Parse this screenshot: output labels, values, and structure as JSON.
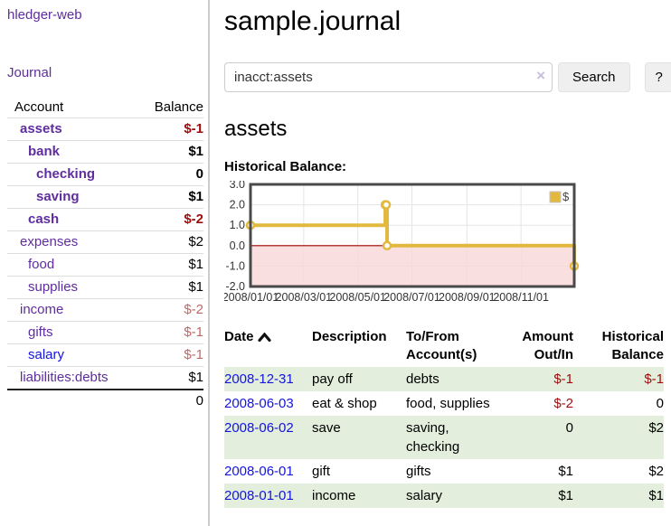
{
  "sidebar": {
    "app_title": "hledger-web",
    "nav_journal": "Journal",
    "accounts_table": {
      "headers": {
        "account": "Account",
        "balance": "Balance"
      },
      "rows": [
        {
          "name": "assets",
          "depth": 1,
          "bold": true,
          "balance": "$-1",
          "balance_style": "neg-strong"
        },
        {
          "name": "bank",
          "depth": 2,
          "bold": true,
          "balance": "$1",
          "balance_style": "normal"
        },
        {
          "name": "checking",
          "depth": 3,
          "bold": true,
          "balance": "0",
          "balance_style": "normal"
        },
        {
          "name": "saving",
          "depth": 3,
          "bold": true,
          "balance": "$1",
          "balance_style": "normal"
        },
        {
          "name": "cash",
          "depth": 2,
          "bold": true,
          "balance": "$-2",
          "balance_style": "neg-strong"
        },
        {
          "name": "expenses",
          "depth": 1,
          "bold": false,
          "balance": "$2",
          "balance_style": "normal"
        },
        {
          "name": "food",
          "depth": 2,
          "bold": false,
          "balance": "$1",
          "balance_style": "normal"
        },
        {
          "name": "supplies",
          "depth": 2,
          "bold": false,
          "balance": "$1",
          "balance_style": "normal"
        },
        {
          "name": "income",
          "depth": 1,
          "bold": false,
          "balance": "$-2",
          "balance_style": "neg-soft"
        },
        {
          "name": "gifts",
          "depth": 2,
          "bold": false,
          "balance": "$-1",
          "balance_style": "neg-soft"
        },
        {
          "name": "salary",
          "depth": 2,
          "bold": false,
          "balance": "$-1",
          "balance_style": "neg-soft",
          "unvisited": true
        },
        {
          "name": "liabilities:debts",
          "depth": 1,
          "bold": false,
          "balance": "$1",
          "balance_style": "normal"
        }
      ],
      "total": "0"
    }
  },
  "main": {
    "title": "sample.journal",
    "search": {
      "value": "inacct:assets",
      "button_label": "Search",
      "help_label": "?"
    },
    "account_heading": "assets",
    "chart_label": "Historical Balance:"
  },
  "icons": {
    "clear_search": "×",
    "date_sort": "chevron-up"
  },
  "chart_data": {
    "type": "line",
    "step": true,
    "title": "Historical Balance",
    "legend": [
      "$"
    ],
    "legend_position": "top-right",
    "x_range": [
      "2008/01/01",
      "2008/12/31"
    ],
    "x_ticks": [
      "2008/01/01",
      "2008/03/01",
      "2008/05/01",
      "2008/07/01",
      "2008/09/01",
      "2008/11/01"
    ],
    "y_ticks": [
      3.0,
      2.0,
      1.0,
      0.0,
      -1.0,
      -2.0
    ],
    "ylim": [
      -2.0,
      3.0
    ],
    "grid": true,
    "series": [
      {
        "name": "$",
        "points": [
          [
            "2008/01/01",
            1
          ],
          [
            "2008/06/01",
            2
          ],
          [
            "2008/06/02",
            2
          ],
          [
            "2008/06/03",
            0
          ],
          [
            "2008/12/31",
            -1
          ]
        ]
      }
    ],
    "colors": {
      "line": "#e3b83e",
      "marker_fill": "#ffffff",
      "negative_region_fill": "#f8d7d7",
      "zero_line": "#a40000",
      "grid": "#e5e5e5",
      "border": "#4a4a4a",
      "tick_text": "#333333"
    }
  },
  "register": {
    "columns": [
      "Date",
      "Description",
      "To/From Account(s)",
      "Amount Out/In",
      "Historical Balance"
    ],
    "sort": {
      "column": "Date",
      "direction": "ascending"
    },
    "rows": [
      {
        "date": "2008-12-31",
        "description": "pay off",
        "accounts": "debts",
        "amount": "$-1",
        "amount_style": "neg",
        "balance": "$-1",
        "balance_style": "neg"
      },
      {
        "date": "2008-06-03",
        "description": "eat & shop",
        "accounts": "food, supplies",
        "amount": "$-2",
        "amount_style": "neg",
        "balance": "0",
        "balance_style": "normal"
      },
      {
        "date": "2008-06-02",
        "description": "save",
        "accounts": "saving, checking",
        "amount": "0",
        "amount_style": "normal",
        "balance": "$2",
        "balance_style": "normal"
      },
      {
        "date": "2008-06-01",
        "description": "gift",
        "accounts": "gifts",
        "amount": "$1",
        "amount_style": "normal",
        "balance": "$2",
        "balance_style": "normal"
      },
      {
        "date": "2008-01-01",
        "description": "income",
        "accounts": "salary",
        "amount": "$1",
        "amount_style": "normal",
        "balance": "$1",
        "balance_style": "normal"
      }
    ]
  },
  "colors": {
    "link_purple": "#5f2d9e",
    "link_blue": "#1414dd",
    "negative_strong": "#9e0d0d",
    "negative_soft": "#bb6a6a",
    "row_stripe_green": "#e3eedd",
    "divider_gray": "#cccccc"
  }
}
